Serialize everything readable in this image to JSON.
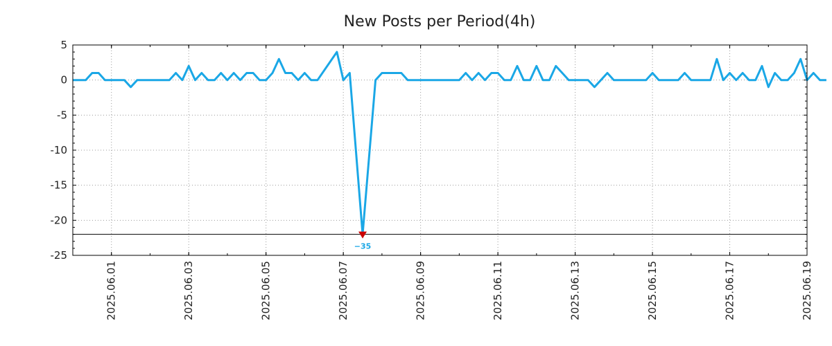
{
  "chart_data": {
    "type": "line",
    "title": "New Posts per Period(4h)",
    "xlabel": "",
    "ylabel": "",
    "ylim": [
      -25,
      5
    ],
    "y_ticks": [
      "5",
      "0",
      "-5",
      "-10",
      "-15",
      "-20",
      "-25"
    ],
    "x_range": [
      "2025-05-31T00:00",
      "2025-06-19T00:00"
    ],
    "x_ticks": [
      {
        "date": "2025-06-01",
        "label": "2025.06.01"
      },
      {
        "date": "2025-06-03",
        "label": "2025.06.03"
      },
      {
        "date": "2025-06-05",
        "label": "2025.06.05"
      },
      {
        "date": "2025-06-07",
        "label": "2025.06.07"
      },
      {
        "date": "2025-06-09",
        "label": "2025.06.09"
      },
      {
        "date": "2025-06-11",
        "label": "2025.06.11"
      },
      {
        "date": "2025-06-13",
        "label": "2025.06.13"
      },
      {
        "date": "2025-06-15",
        "label": "2025.06.15"
      },
      {
        "date": "2025-06-17",
        "label": "2025.06.17"
      },
      {
        "date": "2025-06-19",
        "label": "2025.06.19"
      }
    ],
    "grid": true,
    "reference_line": {
      "y": -22
    },
    "series": [
      {
        "color": "#1aa7e6",
        "points": [
          [
            "2025-05-31T00:00",
            0
          ],
          [
            "2025-05-31T08:00",
            0
          ],
          [
            "2025-05-31T12:00",
            1
          ],
          [
            "2025-05-31T16:00",
            1
          ],
          [
            "2025-05-31T20:00",
            0
          ],
          [
            "2025-06-01T08:00",
            0
          ],
          [
            "2025-06-01T12:00",
            -1
          ],
          [
            "2025-06-01T16:00",
            0
          ],
          [
            "2025-06-02T12:00",
            0
          ],
          [
            "2025-06-02T16:00",
            1
          ],
          [
            "2025-06-02T20:00",
            0
          ],
          [
            "2025-06-03T00:00",
            2
          ],
          [
            "2025-06-03T04:00",
            0
          ],
          [
            "2025-06-03T08:00",
            1
          ],
          [
            "2025-06-03T12:00",
            0
          ],
          [
            "2025-06-03T16:00",
            0
          ],
          [
            "2025-06-03T20:00",
            1
          ],
          [
            "2025-06-04T00:00",
            0
          ],
          [
            "2025-06-04T04:00",
            1
          ],
          [
            "2025-06-04T08:00",
            0
          ],
          [
            "2025-06-04T12:00",
            1
          ],
          [
            "2025-06-04T16:00",
            1
          ],
          [
            "2025-06-04T20:00",
            0
          ],
          [
            "2025-06-05T00:00",
            0
          ],
          [
            "2025-06-05T04:00",
            1
          ],
          [
            "2025-06-05T08:00",
            3
          ],
          [
            "2025-06-05T12:00",
            1
          ],
          [
            "2025-06-05T16:00",
            1
          ],
          [
            "2025-06-05T20:00",
            0
          ],
          [
            "2025-06-06T00:00",
            1
          ],
          [
            "2025-06-06T04:00",
            0
          ],
          [
            "2025-06-06T08:00",
            0
          ],
          [
            "2025-06-06T20:00",
            4
          ],
          [
            "2025-06-07T00:00",
            0
          ],
          [
            "2025-06-07T04:00",
            1
          ],
          [
            "2025-06-07T12:00",
            -22
          ],
          [
            "2025-06-07T20:00",
            0
          ],
          [
            "2025-06-08T00:00",
            1
          ],
          [
            "2025-06-08T12:00",
            1
          ],
          [
            "2025-06-08T16:00",
            0
          ],
          [
            "2025-06-10T00:00",
            0
          ],
          [
            "2025-06-10T04:00",
            1
          ],
          [
            "2025-06-10T08:00",
            0
          ],
          [
            "2025-06-10T12:00",
            1
          ],
          [
            "2025-06-10T16:00",
            0
          ],
          [
            "2025-06-10T20:00",
            1
          ],
          [
            "2025-06-11T00:00",
            1
          ],
          [
            "2025-06-11T04:00",
            0
          ],
          [
            "2025-06-11T08:00",
            0
          ],
          [
            "2025-06-11T12:00",
            2
          ],
          [
            "2025-06-11T16:00",
            0
          ],
          [
            "2025-06-11T20:00",
            0
          ],
          [
            "2025-06-12T00:00",
            2
          ],
          [
            "2025-06-12T04:00",
            0
          ],
          [
            "2025-06-12T08:00",
            0
          ],
          [
            "2025-06-12T12:00",
            2
          ],
          [
            "2025-06-12T16:00",
            1
          ],
          [
            "2025-06-12T20:00",
            0
          ],
          [
            "2025-06-13T08:00",
            0
          ],
          [
            "2025-06-13T12:00",
            -1
          ],
          [
            "2025-06-13T16:00",
            0
          ],
          [
            "2025-06-13T20:00",
            1
          ],
          [
            "2025-06-14T00:00",
            0
          ],
          [
            "2025-06-14T20:00",
            0
          ],
          [
            "2025-06-15T00:00",
            1
          ],
          [
            "2025-06-15T04:00",
            0
          ],
          [
            "2025-06-15T16:00",
            0
          ],
          [
            "2025-06-15T20:00",
            1
          ],
          [
            "2025-06-16T00:00",
            0
          ],
          [
            "2025-06-16T12:00",
            0
          ],
          [
            "2025-06-16T16:00",
            3
          ],
          [
            "2025-06-16T20:00",
            0
          ],
          [
            "2025-06-17T00:00",
            1
          ],
          [
            "2025-06-17T04:00",
            0
          ],
          [
            "2025-06-17T08:00",
            1
          ],
          [
            "2025-06-17T12:00",
            0
          ],
          [
            "2025-06-17T16:00",
            0
          ],
          [
            "2025-06-17T20:00",
            2
          ],
          [
            "2025-06-18T00:00",
            -1
          ],
          [
            "2025-06-18T04:00",
            1
          ],
          [
            "2025-06-18T08:00",
            0
          ],
          [
            "2025-06-18T12:00",
            0
          ],
          [
            "2025-06-18T16:00",
            1
          ],
          [
            "2025-06-18T20:00",
            3
          ],
          [
            "2025-06-19T00:00",
            0
          ],
          [
            "2025-06-19T04:00",
            1
          ],
          [
            "2025-06-19T08:00",
            0
          ],
          [
            "2025-06-19T12:00",
            0
          ]
        ]
      }
    ],
    "annotations": [
      {
        "x": "2025-06-07T12:00",
        "y": -22,
        "label": "−35",
        "marker_color": "#cc0000",
        "text_color": "#1aa7e6"
      }
    ]
  }
}
